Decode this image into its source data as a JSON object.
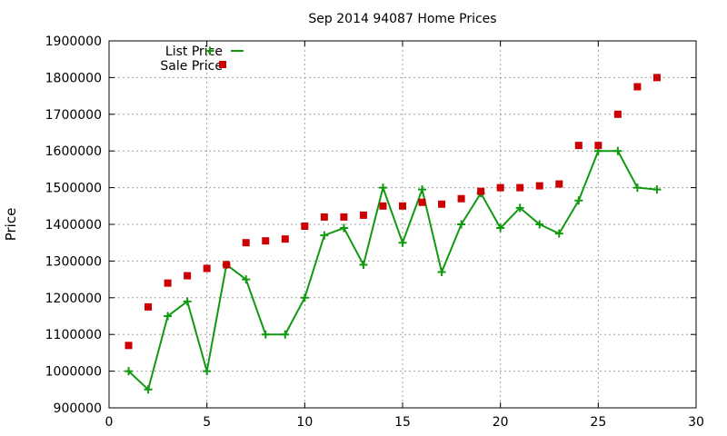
{
  "chart_data": {
    "type": "line",
    "title": "Sep 2014 94087 Home Prices",
    "xlabel": "",
    "ylabel": "Price",
    "xlim": [
      0,
      30
    ],
    "ylim": [
      900000,
      1900000
    ],
    "x_ticks": [
      0,
      5,
      10,
      15,
      20,
      25,
      30
    ],
    "y_ticks": [
      900000,
      1000000,
      1100000,
      1200000,
      1300000,
      1400000,
      1500000,
      1600000,
      1700000,
      1800000,
      1900000
    ],
    "grid": true,
    "legend_position": "top-left",
    "series": [
      {
        "name": "List Price",
        "style": "line-with-plus-markers",
        "color": "#119911",
        "x": [
          1,
          2,
          3,
          4,
          5,
          6,
          7,
          8,
          9,
          10,
          11,
          12,
          13,
          14,
          15,
          16,
          17,
          18,
          19,
          20,
          21,
          22,
          23,
          24,
          25,
          26,
          27,
          28
        ],
        "values": [
          1000000,
          950000,
          1150000,
          1190000,
          1000000,
          1290000,
          1250000,
          1100000,
          1100000,
          1200000,
          1370000,
          1390000,
          1290000,
          1500000,
          1350000,
          1495000,
          1270000,
          1400000,
          1485000,
          1390000,
          1445000,
          1400000,
          1375000,
          1465000,
          1600000,
          1600000,
          1500000,
          1495000
        ]
      },
      {
        "name": "Sale Price",
        "style": "square-markers",
        "color": "#cc0000",
        "x": [
          1,
          2,
          3,
          4,
          5,
          6,
          7,
          8,
          9,
          10,
          11,
          12,
          13,
          14,
          15,
          16,
          17,
          18,
          19,
          20,
          21,
          22,
          23,
          24,
          25,
          26,
          27,
          28
        ],
        "values": [
          1070000,
          1175000,
          1240000,
          1260000,
          1280000,
          1290000,
          1350000,
          1355000,
          1360000,
          1395000,
          1420000,
          1420000,
          1425000,
          1450000,
          1450000,
          1460000,
          1455000,
          1470000,
          1490000,
          1500000,
          1500000,
          1505000,
          1510000,
          1615000,
          1615000,
          1700000,
          1775000,
          1800000
        ]
      }
    ]
  }
}
